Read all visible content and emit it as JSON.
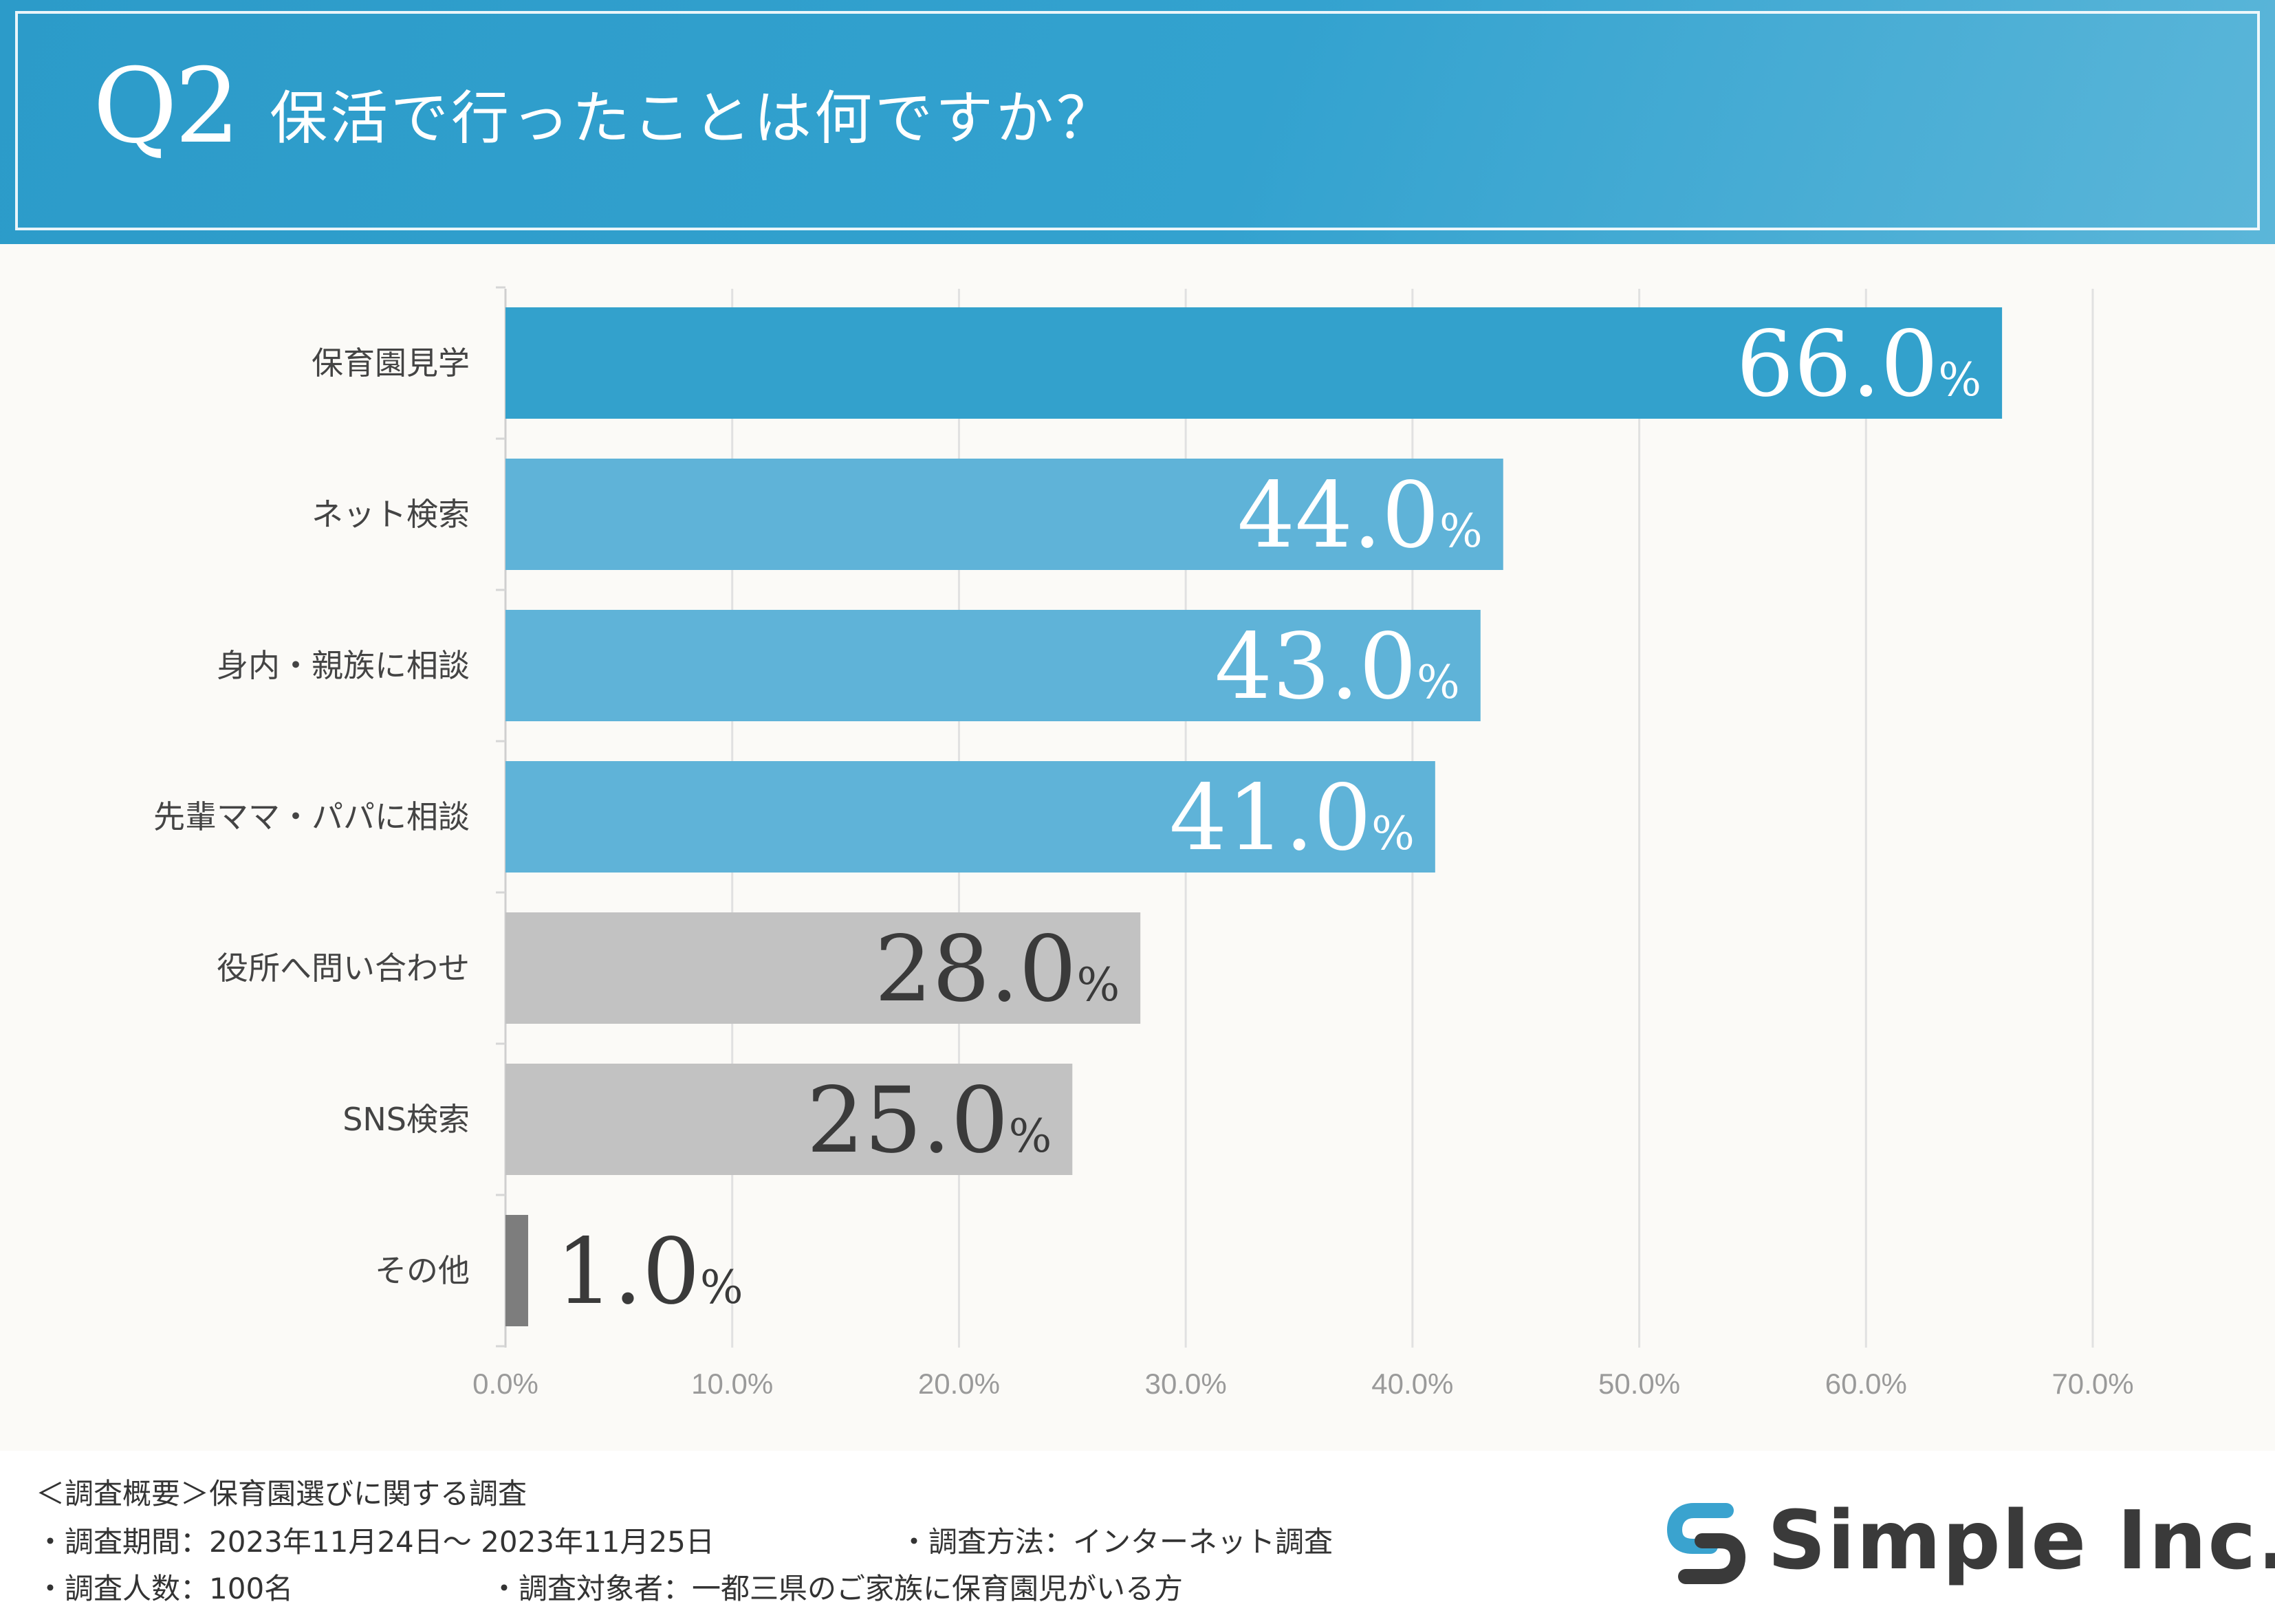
{
  "header": {
    "q_label": "Q2",
    "title": "保活で行ったことは何ですか？"
  },
  "colors": {
    "header_blue": "#2e9ecb",
    "bar_primary": "#33a1cc",
    "bar_blue": "#5fb3d8",
    "bar_gray": "#c2c2c2",
    "bar_dark": "#7d7d7d"
  },
  "chart_data": {
    "type": "bar",
    "orientation": "horizontal",
    "categories": [
      "保育園見学",
      "ネット検索",
      "身内・親族に相談",
      "先輩ママ・パパに相談",
      "役所へ問い合わせ",
      "SNS検索",
      "その他"
    ],
    "values": [
      66.0,
      44.0,
      43.0,
      41.0,
      28.0,
      25.0,
      1.0
    ],
    "value_labels": [
      "66.0",
      "44.0",
      "43.0",
      "41.0",
      "28.0",
      "25.0",
      "1.0"
    ],
    "value_unit": "%",
    "bar_colors": [
      "#33a1cc",
      "#5fb3d8",
      "#5fb3d8",
      "#5fb3d8",
      "#c2c2c2",
      "#c2c2c2",
      "#7d7d7d"
    ],
    "label_colors": [
      "#ffffff",
      "#ffffff",
      "#ffffff",
      "#ffffff",
      "#3a3a3a",
      "#3a3a3a",
      "#3a3a3a"
    ],
    "xlim": [
      0,
      70
    ],
    "xticks": [
      0,
      10,
      20,
      30,
      40,
      50,
      60,
      70
    ],
    "xtick_labels": [
      "0.0%",
      "10.0%",
      "20.0%",
      "30.0%",
      "40.0%",
      "50.0%",
      "60.0%",
      "70.0%"
    ],
    "grid": true,
    "legend": "none"
  },
  "footer": {
    "overview": "＜調査概要＞保育園選びに関する調査",
    "period": "・調査期間：2023年11月24日～ 2023年11月25日",
    "method": "・調査方法：インターネット調査",
    "sample": "・調査人数：100名",
    "target": "・調査対象者：一都三県のご家族に保育園児がいる方"
  },
  "logo": {
    "text": "Simple Inc.",
    "icon": "simple-inc-logo-icon"
  }
}
